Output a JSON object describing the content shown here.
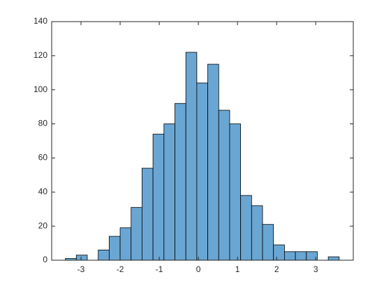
{
  "chart_data": {
    "type": "histogram",
    "bins": [
      -3.4,
      -3.12,
      -2.84,
      -2.56,
      -2.28,
      -2,
      -1.72,
      -1.44,
      -1.16,
      -0.88,
      -0.6,
      -0.32,
      -0.04,
      0.24,
      0.52,
      0.8,
      1.08,
      1.36,
      1.64,
      1.92,
      2.2,
      2.48,
      2.76,
      3.04,
      3.32,
      3.6
    ],
    "values": [
      1,
      3,
      0,
      6,
      14,
      19,
      31,
      54,
      74,
      80,
      92,
      122,
      104,
      115,
      88,
      80,
      38,
      32,
      21,
      9,
      5,
      5,
      5,
      0,
      2
    ],
    "color": "#6aa6d3",
    "edge_color": "#000000",
    "xlim": [
      -3.75,
      3.96
    ],
    "xticks": [
      -3,
      -2,
      -1,
      0,
      1,
      2,
      3
    ],
    "ylim": [
      0,
      140
    ],
    "yticks": [
      0,
      20,
      40,
      60,
      80,
      100,
      120,
      140
    ]
  }
}
